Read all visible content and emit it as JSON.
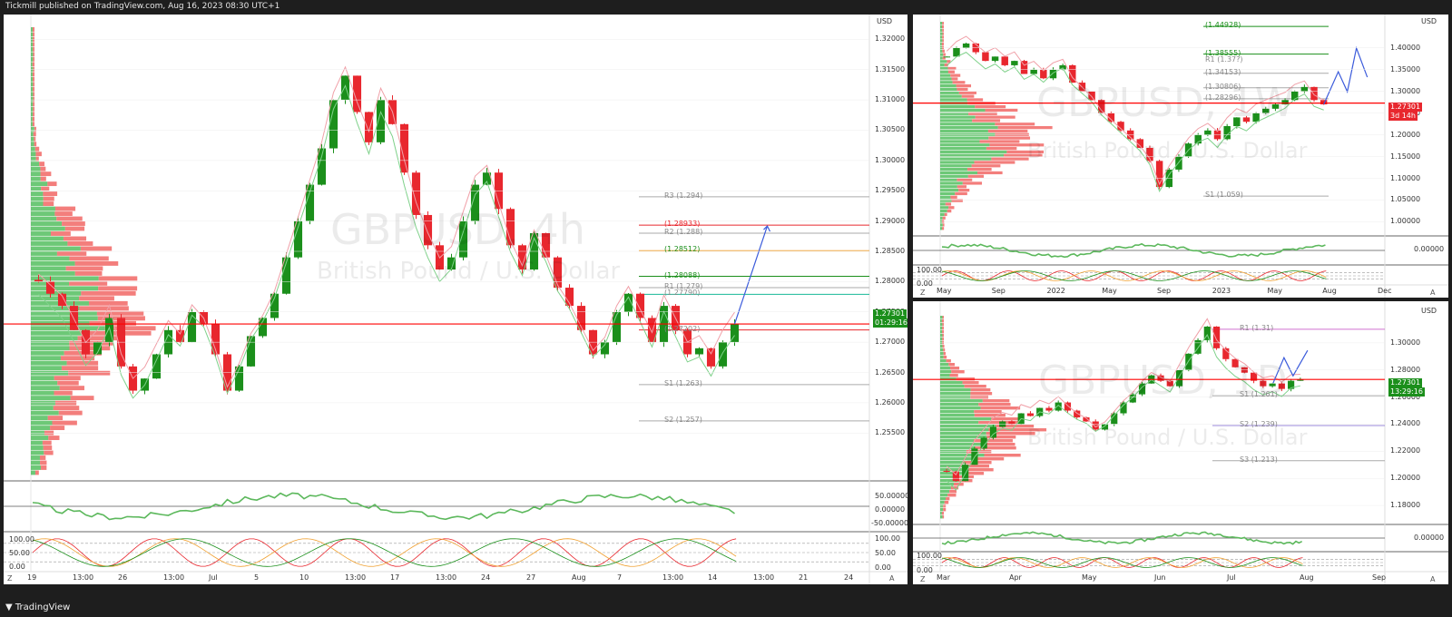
{
  "header": {
    "text": "Tickmill published on TradingView.com, Aug 16, 2023 08:30 UTC+1"
  },
  "footer": {
    "logo": "TradingView"
  },
  "colors": {
    "up": "#089981",
    "upGreen": "#1b8f1b",
    "down": "#e8272e",
    "profileUp": "#3cb54a",
    "profileDown": "#ef5350",
    "accent": "#ff0000",
    "grid": "#eeeeee"
  },
  "main": {
    "title": "GBPUSD, 4h",
    "subtitle": "British Pound / U.S. Dollar",
    "currency": "USD",
    "price_axis": [
      "1.32000",
      "1.31500",
      "1.31000",
      "1.30500",
      "1.30000",
      "1.29500",
      "1.29000",
      "1.28500",
      "1.28000",
      "1.27500",
      "1.27000",
      "1.26500",
      "1.26000",
      "1.25500",
      "1.25000"
    ],
    "time_axis": [
      "19",
      "13:00",
      "26",
      "13:00",
      "Jul",
      "5",
      "10",
      "13:00",
      "17",
      "13:00",
      "24",
      "27",
      "Aug",
      "7",
      "13:00",
      "14",
      "13:00",
      "21",
      "24"
    ],
    "last_price": "1.27301",
    "countdown": "01:29:16",
    "pivots": [
      {
        "label": "R3 (1.294)",
        "kind": "plain"
      },
      {
        "label": "R2 (1.288)",
        "kind": "plain"
      },
      {
        "label": "(1.28933)",
        "kind": "red"
      },
      {
        "label": "(1.28512)",
        "kind": "green"
      },
      {
        "label": "(1.28088)",
        "kind": "green"
      },
      {
        "label": "R1 (1.279)",
        "kind": "plain"
      },
      {
        "label": "(1.27790)",
        "kind": "plain"
      },
      {
        "label": "(1.27202)",
        "kind": "plain"
      },
      {
        "label": "S1 (1.263)",
        "kind": "plain"
      },
      {
        "label": "S2 (1.257)",
        "kind": "plain"
      }
    ],
    "osc1_axis": [
      "50.00000",
      "0.00000",
      "-50.00000"
    ],
    "osc2_axis": [
      "100.00",
      "50.00",
      "0.00"
    ],
    "osc2_left": [
      "100.00",
      "50.00",
      "0.00"
    ],
    "corner_left": "Z",
    "corner_right": "A"
  },
  "weekly": {
    "title": "GBPUSD, 1W",
    "subtitle": "British Pound / U.S. Dollar",
    "currency": "USD",
    "price_axis": [
      "1.40000",
      "1.35000",
      "1.30000",
      "1.25000",
      "1.20000",
      "1.15000",
      "1.10000",
      "1.05000",
      "1.00000"
    ],
    "osc_axis": [
      "0.00000"
    ],
    "osc2_left": [
      "100.00",
      "0.00"
    ],
    "time_axis": [
      "May",
      "Sep",
      "2022",
      "May",
      "Sep",
      "2023",
      "May",
      "Aug",
      "Dec"
    ],
    "last_price": "1.27301",
    "countdown": "3d 14h",
    "pivots": [
      {
        "label": "(1.44928)",
        "kind": "green"
      },
      {
        "label": "(1.38555)",
        "kind": "green"
      },
      {
        "label": "R1 (1.37?)",
        "kind": "plain"
      },
      {
        "label": "(1.34153)",
        "kind": "plain"
      },
      {
        "label": "(1.30806)",
        "kind": "plain"
      },
      {
        "label": "(1.28296)",
        "kind": "plain"
      },
      {
        "label": "S1 (1.059)",
        "kind": "plain"
      }
    ],
    "corner_left": "Z",
    "corner_right": "A"
  },
  "daily": {
    "title": "GBPUSD, 1D",
    "subtitle": "British Pound / U.S. Dollar",
    "currency": "USD",
    "price_axis": [
      "1.30000",
      "1.28000",
      "1.26000",
      "1.24000",
      "1.22000",
      "1.20000",
      "1.18000"
    ],
    "osc_axis": [
      "0.00000"
    ],
    "osc2_left": [
      "100.00",
      "0.00"
    ],
    "time_axis": [
      "Mar",
      "Apr",
      "May",
      "Jun",
      "Jul",
      "Aug",
      "Sep"
    ],
    "last_price": "1.27301",
    "countdown": "13:29:16",
    "pivots": [
      {
        "label": "R1 (1.31)",
        "kind": "plain"
      },
      {
        "label": "S1 (1.261)",
        "kind": "plain"
      },
      {
        "label": "S2 (1.239)",
        "kind": "plain"
      },
      {
        "label": "S3 (1.213)",
        "kind": "plain"
      }
    ],
    "corner_left": "Z",
    "corner_right": "A"
  },
  "chart_data": [
    {
      "type": "candlestick",
      "title": "GBPUSD, 4h",
      "ylim": [
        1.248,
        1.322
      ],
      "series_close": [
        1.28,
        1.278,
        1.276,
        1.272,
        1.268,
        1.27,
        1.274,
        1.266,
        1.262,
        1.264,
        1.268,
        1.272,
        1.27,
        1.275,
        1.273,
        1.268,
        1.262,
        1.266,
        1.271,
        1.274,
        1.278,
        1.284,
        1.29,
        1.296,
        1.302,
        1.31,
        1.314,
        1.308,
        1.303,
        1.31,
        1.306,
        1.298,
        1.291,
        1.286,
        1.282,
        1.284,
        1.29,
        1.296,
        1.298,
        1.292,
        1.286,
        1.282,
        1.288,
        1.284,
        1.279,
        1.276,
        1.272,
        1.268,
        1.27,
        1.275,
        1.278,
        1.274,
        1.27,
        1.276,
        1.272,
        1.268,
        1.269,
        1.266,
        1.27,
        1.273
      ],
      "pivot_levels": [
        1.294,
        1.288,
        1.28933,
        1.28512,
        1.28088,
        1.279,
        1.2779,
        1.27202,
        1.263,
        1.257
      ],
      "last_price": 1.27301
    },
    {
      "type": "candlestick",
      "title": "GBPUSD, 1W",
      "ylim": [
        0.98,
        1.46
      ],
      "series_close": [
        1.38,
        1.4,
        1.41,
        1.39,
        1.37,
        1.38,
        1.36,
        1.37,
        1.34,
        1.35,
        1.33,
        1.35,
        1.36,
        1.32,
        1.3,
        1.28,
        1.25,
        1.23,
        1.21,
        1.19,
        1.17,
        1.14,
        1.08,
        1.12,
        1.15,
        1.18,
        1.2,
        1.21,
        1.19,
        1.22,
        1.24,
        1.23,
        1.25,
        1.26,
        1.27,
        1.28,
        1.3,
        1.31,
        1.28,
        1.27
      ],
      "pivot_levels": [
        1.44928,
        1.38555,
        1.34153,
        1.30806,
        1.28296,
        1.059
      ],
      "last_price": 1.27301
    },
    {
      "type": "candlestick",
      "title": "GBPUSD, 1D",
      "ylim": [
        1.17,
        1.32
      ],
      "series_close": [
        1.205,
        1.198,
        1.21,
        1.222,
        1.23,
        1.238,
        1.242,
        1.24,
        1.248,
        1.246,
        1.252,
        1.25,
        1.256,
        1.25,
        1.245,
        1.242,
        1.236,
        1.24,
        1.248,
        1.256,
        1.262,
        1.27,
        1.276,
        1.272,
        1.268,
        1.28,
        1.292,
        1.302,
        1.312,
        1.296,
        1.288,
        1.282,
        1.278,
        1.272,
        1.268,
        1.27,
        1.266,
        1.272,
        1.273
      ],
      "pivot_levels": [
        1.31,
        1.261,
        1.239,
        1.213
      ],
      "last_price": 1.27301
    }
  ]
}
